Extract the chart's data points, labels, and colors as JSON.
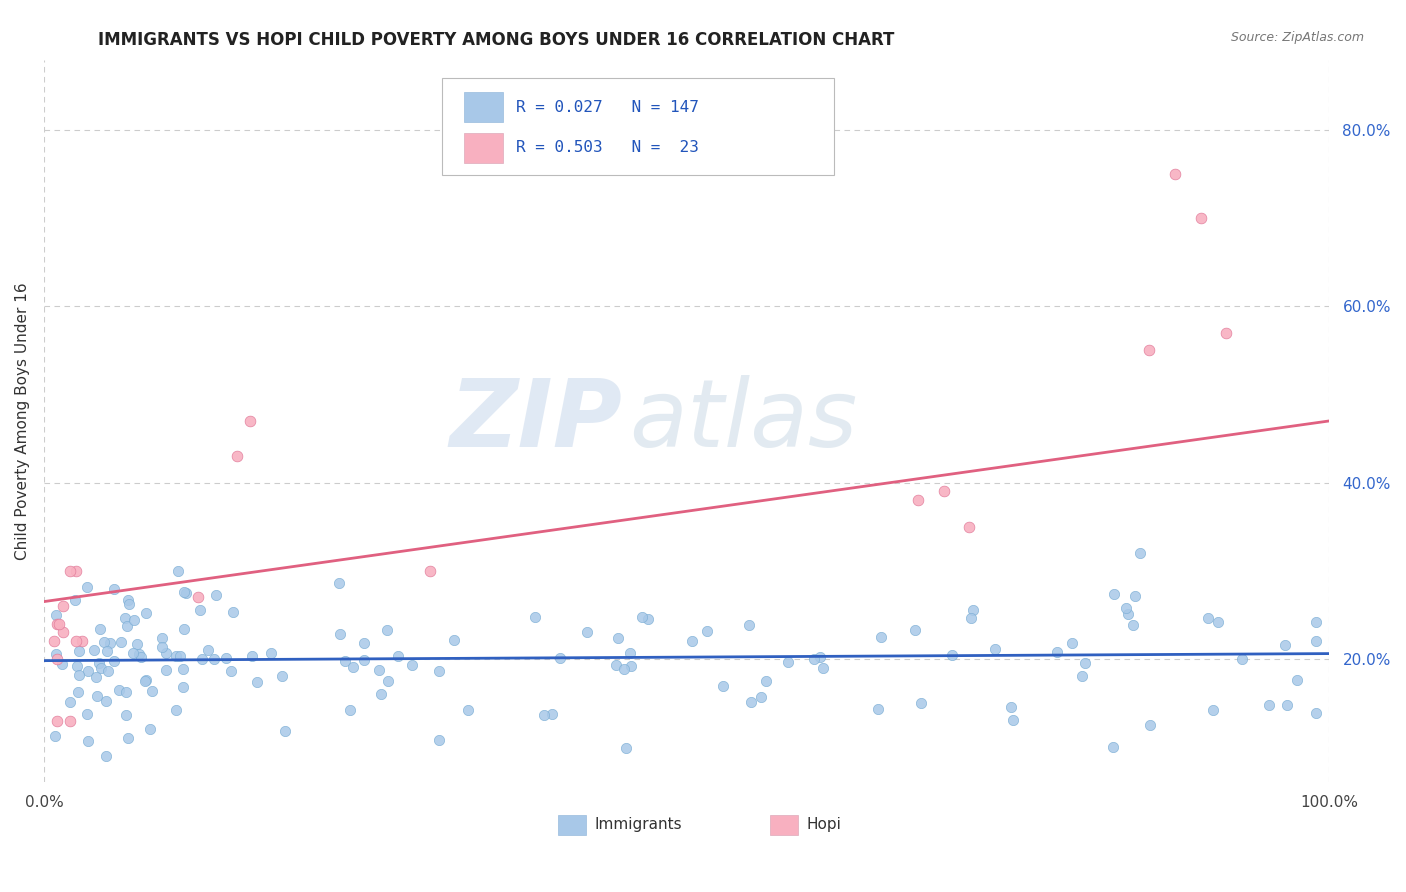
{
  "title": "IMMIGRANTS VS HOPI CHILD POVERTY AMONG BOYS UNDER 16 CORRELATION CHART",
  "source": "Source: ZipAtlas.com",
  "ylabel": "Child Poverty Among Boys Under 16",
  "xlim": [
    0.0,
    1.0
  ],
  "ylim": [
    0.06,
    0.88
  ],
  "right_yticks": [
    0.2,
    0.4,
    0.6,
    0.8
  ],
  "right_yticklabels": [
    "20.0%",
    "40.0%",
    "60.0%",
    "80.0%"
  ],
  "blue_color": "#a8c8e8",
  "blue_edge_color": "#7aadd4",
  "blue_line_color": "#3060c0",
  "pink_color": "#f8b0c0",
  "pink_edge_color": "#e07898",
  "pink_line_color": "#e06080",
  "watermark_zip": "ZIP",
  "watermark_atlas": "atlas",
  "hopi_x": [
    0.01,
    0.015,
    0.02,
    0.01,
    0.008,
    0.012,
    0.025,
    0.03,
    0.015,
    0.02,
    0.01,
    0.15,
    0.16,
    0.025,
    0.12,
    0.3,
    0.68,
    0.7,
    0.72,
    0.86,
    0.9,
    0.88,
    0.92
  ],
  "hopi_y": [
    0.24,
    0.23,
    0.13,
    0.2,
    0.22,
    0.24,
    0.3,
    0.22,
    0.26,
    0.3,
    0.13,
    0.43,
    0.47,
    0.22,
    0.27,
    0.3,
    0.38,
    0.39,
    0.35,
    0.55,
    0.7,
    0.75,
    0.57
  ],
  "imm_line_slope": 0.008,
  "imm_line_intercept": 0.198,
  "hopi_line_x0": 0.0,
  "hopi_line_x1": 1.0,
  "hopi_line_y0": 0.265,
  "hopi_line_y1": 0.47
}
